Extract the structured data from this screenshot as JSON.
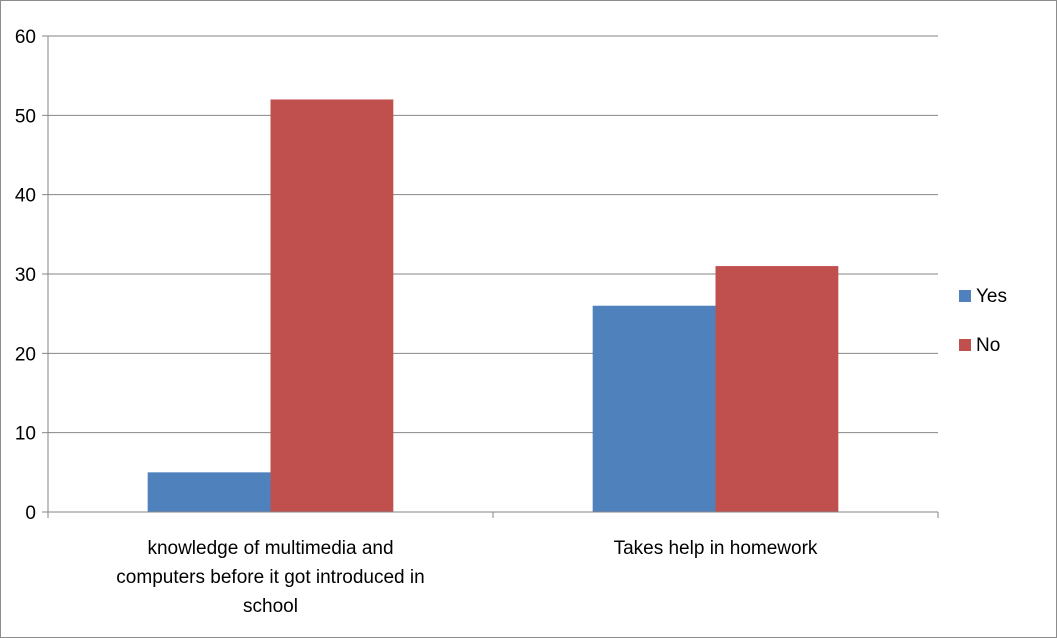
{
  "chart_data": {
    "type": "bar",
    "title": "",
    "xlabel": "",
    "ylabel": "",
    "categories": [
      [
        "knowledge of multimedia and",
        "computers before it got introduced in",
        "school"
      ],
      [
        "Takes help in homework"
      ]
    ],
    "series": [
      {
        "name": "Yes",
        "color": "#4f81bd",
        "values": [
          5,
          26
        ]
      },
      {
        "name": "No",
        "color": "#c0504d",
        "values": [
          52,
          31
        ]
      }
    ],
    "ylim": [
      0,
      60
    ],
    "yticks": [
      0,
      10,
      20,
      30,
      40,
      50,
      60
    ],
    "grid": true,
    "legend_position": "right"
  }
}
